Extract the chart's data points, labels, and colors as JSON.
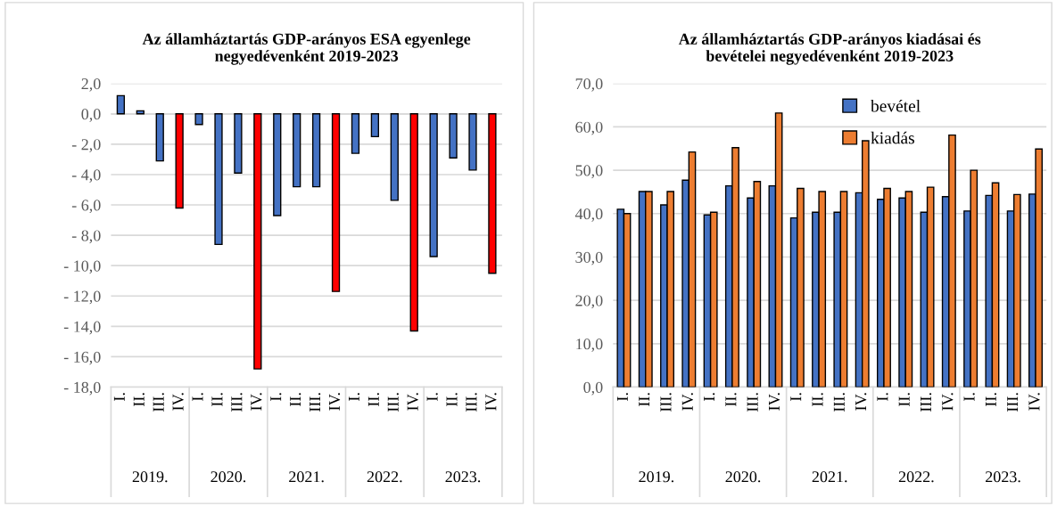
{
  "chart_data": [
    {
      "type": "bar",
      "title": "Az államháztartás GDP-arányos ESA egyenlege\nnegyedévenként 2019-2023",
      "categories": [
        "I.",
        "II.",
        "III.",
        "IV.",
        "I.",
        "II.",
        "III.",
        "IV.",
        "I.",
        "II.",
        "III.",
        "IV.",
        "I.",
        "II.",
        "III.",
        "IV.",
        "I.",
        "II.",
        "III.",
        "IV."
      ],
      "values": [
        1.2,
        0.2,
        -3.1,
        -6.2,
        -0.7,
        -8.6,
        -3.9,
        -16.8,
        -6.7,
        -4.8,
        -4.8,
        -11.7,
        -2.6,
        -1.5,
        -5.7,
        -14.3,
        -9.4,
        -2.9,
        -3.7,
        -10.5
      ],
      "colors": [
        "#4472c4",
        "#4472c4",
        "#4472c4",
        "#ff0000",
        "#4472c4",
        "#4472c4",
        "#4472c4",
        "#ff0000",
        "#4472c4",
        "#4472c4",
        "#4472c4",
        "#ff0000",
        "#4472c4",
        "#4472c4",
        "#4472c4",
        "#ff0000",
        "#4472c4",
        "#4472c4",
        "#4472c4",
        "#ff0000"
      ],
      "ylim": [
        -18,
        2
      ],
      "yticks": [
        {
          "value": -18,
          "label": "- 18,0"
        },
        {
          "value": -16,
          "label": "- 16,0"
        },
        {
          "value": -14,
          "label": "- 14,0"
        },
        {
          "value": -12,
          "label": "- 12,0"
        },
        {
          "value": -10,
          "label": "- 10,0"
        },
        {
          "value": -8,
          "label": "- 8,0"
        },
        {
          "value": -6,
          "label": "- 6,0"
        },
        {
          "value": -4,
          "label": "- 4,0"
        },
        {
          "value": -2,
          "label": "- 2,0"
        },
        {
          "value": 0,
          "label": "0,0"
        },
        {
          "value": 2,
          "label": "2,0"
        }
      ],
      "annotations": [
        "2019.",
        "2020.",
        "2021.",
        "2022.",
        "2023."
      ],
      "grid": "y",
      "legend": false
    },
    {
      "type": "bar",
      "title": "Az államháztartás GDP-arányos kiadásai és\nbevételei negyedévenként 2019-2023",
      "categories": [
        "I.",
        "II.",
        "III.",
        "IV.",
        "I.",
        "II.",
        "III.",
        "IV.",
        "I.",
        "II.",
        "III.",
        "IV.",
        "I.",
        "II.",
        "III.",
        "IV.",
        "I.",
        "II.",
        "III.",
        "IV."
      ],
      "series": [
        {
          "name": "bevétel",
          "color": "#4472c4",
          "values": [
            41.0,
            45.1,
            42.0,
            47.7,
            39.7,
            46.4,
            43.6,
            46.4,
            39.0,
            40.3,
            40.3,
            44.8,
            43.3,
            43.6,
            40.3,
            43.9,
            40.6,
            44.2,
            40.6,
            44.5
          ]
        },
        {
          "name": "kiadás",
          "color": "#ed7d31",
          "values": [
            40.0,
            45.1,
            45.1,
            54.2,
            40.3,
            55.2,
            47.4,
            63.2,
            45.8,
            45.1,
            45.1,
            56.8,
            45.8,
            45.1,
            46.1,
            58.1,
            50.0,
            47.1,
            44.4,
            54.9
          ]
        }
      ],
      "ylim": [
        0,
        70
      ],
      "yticks": [
        {
          "value": 0,
          "label": "0,0"
        },
        {
          "value": 10,
          "label": "10,0"
        },
        {
          "value": 20,
          "label": "20,0"
        },
        {
          "value": 30,
          "label": "30,0"
        },
        {
          "value": 40,
          "label": "40,0"
        },
        {
          "value": 50,
          "label": "50,0"
        },
        {
          "value": 60,
          "label": "60,0"
        },
        {
          "value": 70,
          "label": "70,0"
        }
      ],
      "annotations": [
        "2019.",
        "2020.",
        "2021.",
        "2022.",
        "2023."
      ],
      "grid": "y",
      "legend": "top"
    }
  ]
}
